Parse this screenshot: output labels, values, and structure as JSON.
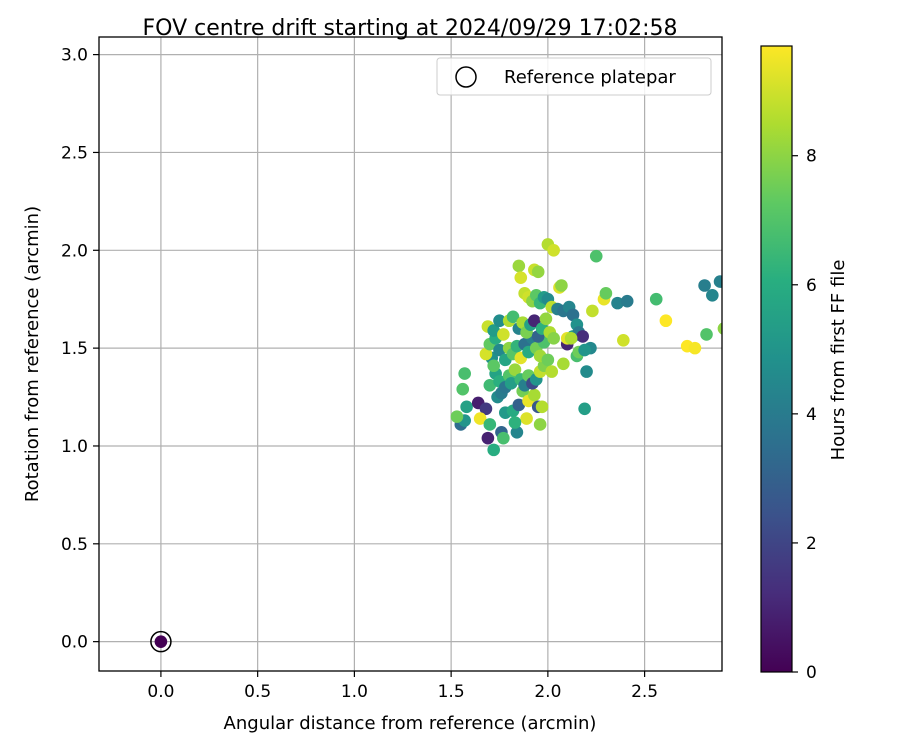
{
  "chart_data": {
    "type": "scatter",
    "title": "FOV centre drift starting at 2024/09/29 17:02:58",
    "xlabel": "Angular distance from reference (arcmin)",
    "ylabel": "Rotation from reference (arcmin)",
    "xlim": [
      -0.32,
      2.9
    ],
    "ylim": [
      -0.15,
      3.09
    ],
    "xticks": [
      0.0,
      0.5,
      1.0,
      1.5,
      2.0,
      2.5
    ],
    "yticks": [
      0.0,
      0.5,
      1.0,
      1.5,
      2.0,
      2.5,
      3.0
    ],
    "xtick_labels": [
      "0.0",
      "0.5",
      "1.0",
      "1.5",
      "2.0",
      "2.5"
    ],
    "ytick_labels": [
      "0.0",
      "0.5",
      "1.0",
      "1.5",
      "2.0",
      "2.5",
      "3.0"
    ],
    "grid": true,
    "legend": {
      "placement": "top-right",
      "entries": [
        {
          "label": "Reference platepar",
          "marker": "open-circle"
        }
      ]
    },
    "colorbar": {
      "label": "Hours from first FF file",
      "colormap": "viridis",
      "range": [
        0,
        9.7
      ],
      "ticks": [
        0,
        2,
        4,
        6,
        8
      ],
      "tick_labels": [
        "0",
        "2",
        "4",
        "6",
        "8"
      ]
    },
    "reference_point": {
      "x": 0.0,
      "y": 0.0,
      "hours": 0.0
    },
    "points": [
      {
        "x": 1.55,
        "y": 1.11,
        "h": 3.5
      },
      {
        "x": 1.57,
        "y": 1.13,
        "h": 5.0
      },
      {
        "x": 1.58,
        "y": 1.2,
        "h": 5.5
      },
      {
        "x": 1.64,
        "y": 1.22,
        "h": 0.8
      },
      {
        "x": 1.68,
        "y": 1.19,
        "h": 1.6
      },
      {
        "x": 1.69,
        "y": 1.04,
        "h": 0.9
      },
      {
        "x": 1.72,
        "y": 0.98,
        "h": 6.0
      },
      {
        "x": 1.76,
        "y": 1.07,
        "h": 3.2
      },
      {
        "x": 1.77,
        "y": 1.04,
        "h": 6.8
      },
      {
        "x": 1.84,
        "y": 1.07,
        "h": 4.4
      },
      {
        "x": 1.89,
        "y": 1.14,
        "h": 9.2
      },
      {
        "x": 1.96,
        "y": 1.11,
        "h": 8.0
      },
      {
        "x": 1.65,
        "y": 1.14,
        "h": 9.5
      },
      {
        "x": 1.53,
        "y": 1.15,
        "h": 7.5
      },
      {
        "x": 1.56,
        "y": 1.29,
        "h": 7.0
      },
      {
        "x": 1.57,
        "y": 1.37,
        "h": 6.8
      },
      {
        "x": 1.7,
        "y": 1.11,
        "h": 6.4
      },
      {
        "x": 1.74,
        "y": 1.25,
        "h": 4.6
      },
      {
        "x": 1.76,
        "y": 1.27,
        "h": 4.0
      },
      {
        "x": 1.78,
        "y": 1.17,
        "h": 5.2
      },
      {
        "x": 1.82,
        "y": 1.18,
        "h": 5.9
      },
      {
        "x": 1.83,
        "y": 1.12,
        "h": 6.2
      },
      {
        "x": 1.85,
        "y": 1.21,
        "h": 3.0
      },
      {
        "x": 1.87,
        "y": 1.28,
        "h": 7.6
      },
      {
        "x": 1.9,
        "y": 1.23,
        "h": 9.4
      },
      {
        "x": 1.93,
        "y": 1.26,
        "h": 8.4
      },
      {
        "x": 1.95,
        "y": 1.2,
        "h": 2.6
      },
      {
        "x": 1.97,
        "y": 1.2,
        "h": 8.6
      },
      {
        "x": 1.7,
        "y": 1.31,
        "h": 6.6
      },
      {
        "x": 1.73,
        "y": 1.37,
        "h": 5.6
      },
      {
        "x": 1.71,
        "y": 1.45,
        "h": 4.8
      },
      {
        "x": 1.72,
        "y": 1.41,
        "h": 7.2
      },
      {
        "x": 1.75,
        "y": 1.33,
        "h": 6.1
      },
      {
        "x": 1.78,
        "y": 1.3,
        "h": 3.8
      },
      {
        "x": 1.8,
        "y": 1.36,
        "h": 7.0
      },
      {
        "x": 1.81,
        "y": 1.32,
        "h": 5.4
      },
      {
        "x": 1.83,
        "y": 1.39,
        "h": 8.2
      },
      {
        "x": 1.86,
        "y": 1.34,
        "h": 6.5
      },
      {
        "x": 1.88,
        "y": 1.31,
        "h": 4.2
      },
      {
        "x": 1.9,
        "y": 1.36,
        "h": 7.4
      },
      {
        "x": 1.92,
        "y": 1.32,
        "h": 2.2
      },
      {
        "x": 1.94,
        "y": 1.34,
        "h": 5.0
      },
      {
        "x": 1.96,
        "y": 1.38,
        "h": 8.8
      },
      {
        "x": 1.98,
        "y": 1.41,
        "h": 7.8
      },
      {
        "x": 1.68,
        "y": 1.47,
        "h": 9.1
      },
      {
        "x": 1.7,
        "y": 1.52,
        "h": 7.3
      },
      {
        "x": 1.73,
        "y": 1.55,
        "h": 6.0
      },
      {
        "x": 1.75,
        "y": 1.49,
        "h": 4.5
      },
      {
        "x": 1.78,
        "y": 1.44,
        "h": 5.7
      },
      {
        "x": 1.8,
        "y": 1.5,
        "h": 8.0
      },
      {
        "x": 1.82,
        "y": 1.47,
        "h": 7.1
      },
      {
        "x": 1.84,
        "y": 1.51,
        "h": 6.3
      },
      {
        "x": 1.86,
        "y": 1.45,
        "h": 9.3
      },
      {
        "x": 1.88,
        "y": 1.52,
        "h": 3.6
      },
      {
        "x": 1.9,
        "y": 1.48,
        "h": 5.9
      },
      {
        "x": 1.92,
        "y": 1.55,
        "h": 4.1
      },
      {
        "x": 1.94,
        "y": 1.5,
        "h": 7.6
      },
      {
        "x": 1.96,
        "y": 1.46,
        "h": 8.3
      },
      {
        "x": 1.98,
        "y": 1.53,
        "h": 6.9
      },
      {
        "x": 2.0,
        "y": 1.44,
        "h": 7.5
      },
      {
        "x": 1.69,
        "y": 1.61,
        "h": 8.9
      },
      {
        "x": 1.72,
        "y": 1.59,
        "h": 5.3
      },
      {
        "x": 1.75,
        "y": 1.64,
        "h": 4.7
      },
      {
        "x": 1.77,
        "y": 1.57,
        "h": 9.0
      },
      {
        "x": 1.8,
        "y": 1.64,
        "h": 8.6
      },
      {
        "x": 1.82,
        "y": 1.66,
        "h": 6.7
      },
      {
        "x": 1.85,
        "y": 1.6,
        "h": 4.3
      },
      {
        "x": 1.87,
        "y": 1.63,
        "h": 8.4
      },
      {
        "x": 1.89,
        "y": 1.58,
        "h": 7.7
      },
      {
        "x": 1.91,
        "y": 1.62,
        "h": 5.5
      },
      {
        "x": 1.93,
        "y": 1.64,
        "h": 1.0
      },
      {
        "x": 1.95,
        "y": 1.56,
        "h": 3.1
      },
      {
        "x": 1.97,
        "y": 1.6,
        "h": 6.2
      },
      {
        "x": 1.99,
        "y": 1.65,
        "h": 8.1
      },
      {
        "x": 2.01,
        "y": 1.58,
        "h": 8.5
      },
      {
        "x": 2.03,
        "y": 1.55,
        "h": 7.9
      },
      {
        "x": 1.88,
        "y": 1.78,
        "h": 8.8
      },
      {
        "x": 1.9,
        "y": 1.76,
        "h": 9.0
      },
      {
        "x": 1.92,
        "y": 1.74,
        "h": 8.0
      },
      {
        "x": 1.94,
        "y": 1.77,
        "h": 7.2
      },
      {
        "x": 1.96,
        "y": 1.73,
        "h": 6.4
      },
      {
        "x": 1.98,
        "y": 1.76,
        "h": 5.3
      },
      {
        "x": 2.0,
        "y": 1.75,
        "h": 4.6
      },
      {
        "x": 2.02,
        "y": 1.71,
        "h": 8.7
      },
      {
        "x": 1.85,
        "y": 1.92,
        "h": 8.2
      },
      {
        "x": 1.86,
        "y": 1.86,
        "h": 9.1
      },
      {
        "x": 1.93,
        "y": 1.9,
        "h": 8.9
      },
      {
        "x": 1.95,
        "y": 1.89,
        "h": 8.1
      },
      {
        "x": 2.0,
        "y": 2.03,
        "h": 8.6
      },
      {
        "x": 2.03,
        "y": 2.0,
        "h": 9.0
      },
      {
        "x": 2.06,
        "y": 1.81,
        "h": 9.2
      },
      {
        "x": 2.07,
        "y": 1.82,
        "h": 8.0
      },
      {
        "x": 2.05,
        "y": 1.7,
        "h": 4.2
      },
      {
        "x": 2.08,
        "y": 1.69,
        "h": 3.8
      },
      {
        "x": 2.11,
        "y": 1.71,
        "h": 4.4
      },
      {
        "x": 2.13,
        "y": 1.67,
        "h": 3.6
      },
      {
        "x": 2.15,
        "y": 1.62,
        "h": 4.9
      },
      {
        "x": 2.13,
        "y": 1.56,
        "h": 5.5
      },
      {
        "x": 2.16,
        "y": 1.58,
        "h": 4.0
      },
      {
        "x": 2.18,
        "y": 1.56,
        "h": 1.2
      },
      {
        "x": 2.1,
        "y": 1.52,
        "h": 1.0
      },
      {
        "x": 2.1,
        "y": 1.55,
        "h": 9.3
      },
      {
        "x": 2.12,
        "y": 1.55,
        "h": 8.5
      },
      {
        "x": 2.15,
        "y": 1.46,
        "h": 6.8
      },
      {
        "x": 2.16,
        "y": 1.48,
        "h": 7.5
      },
      {
        "x": 2.08,
        "y": 1.42,
        "h": 8.4
      },
      {
        "x": 2.02,
        "y": 1.38,
        "h": 8.6
      },
      {
        "x": 2.2,
        "y": 1.38,
        "h": 4.6
      },
      {
        "x": 2.19,
        "y": 1.19,
        "h": 5.4
      },
      {
        "x": 2.22,
        "y": 1.5,
        "h": 4.5
      },
      {
        "x": 2.19,
        "y": 1.49,
        "h": 5.0
      },
      {
        "x": 2.23,
        "y": 1.69,
        "h": 8.8
      },
      {
        "x": 2.25,
        "y": 1.97,
        "h": 6.9
      },
      {
        "x": 2.29,
        "y": 1.75,
        "h": 9.4
      },
      {
        "x": 2.3,
        "y": 1.78,
        "h": 7.4
      },
      {
        "x": 2.36,
        "y": 1.73,
        "h": 4.3
      },
      {
        "x": 2.39,
        "y": 1.54,
        "h": 9.0
      },
      {
        "x": 2.41,
        "y": 1.74,
        "h": 4.0
      },
      {
        "x": 2.56,
        "y": 1.75,
        "h": 6.7
      },
      {
        "x": 2.61,
        "y": 1.64,
        "h": 9.7
      },
      {
        "x": 2.72,
        "y": 1.51,
        "h": 9.7
      },
      {
        "x": 2.76,
        "y": 1.5,
        "h": 9.6
      },
      {
        "x": 2.82,
        "y": 1.57,
        "h": 7.0
      },
      {
        "x": 2.81,
        "y": 1.82,
        "h": 4.1
      },
      {
        "x": 2.85,
        "y": 1.77,
        "h": 4.4
      },
      {
        "x": 2.89,
        "y": 1.84,
        "h": 4.2
      },
      {
        "x": 2.91,
        "y": 1.6,
        "h": 8.0
      }
    ]
  }
}
